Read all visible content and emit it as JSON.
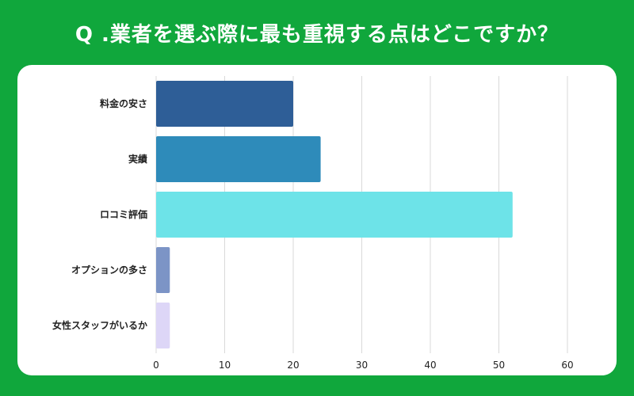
{
  "title": "Q .業者を選ぶ際に最も重視する点はどこですか？",
  "chart_data": {
    "type": "bar",
    "orientation": "horizontal",
    "categories": [
      "料金の安さ",
      "実績",
      "ロコミ評価",
      "オプションの多さ",
      "女性スタッフがいるか"
    ],
    "values": [
      20,
      24,
      52,
      2,
      2
    ],
    "colors": [
      "#2e5e97",
      "#2e8bba",
      "#6de3e8",
      "#7c94c6",
      "#ddd6f7"
    ],
    "xlim": [
      0,
      60
    ],
    "xticks": [
      "0",
      "10",
      "20",
      "30",
      "40",
      "50",
      "60"
    ],
    "grid": true,
    "xlabel": "",
    "ylabel": ""
  }
}
